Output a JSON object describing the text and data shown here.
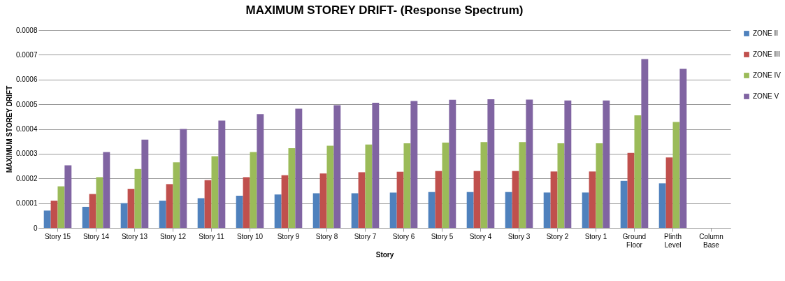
{
  "chart_data": {
    "type": "bar",
    "title": "MAXIMUM STOREY DRIFT- (Response Spectrum)",
    "xlabel": "Story",
    "ylabel": "MAXIMUM STOREY DRIFT",
    "categories": [
      "Story 15",
      "Story 14",
      "Story 13",
      "Story 12",
      "Story 11",
      "Story 10",
      "Story 9",
      "Story 8",
      "Story 7",
      "Story 6",
      "Story 5",
      "Story 4",
      "Story 3",
      "Story 2",
      "Story 1",
      "Ground Floor",
      "Plinth Level",
      "Column Base"
    ],
    "series": [
      {
        "name": "ZONE II",
        "color": "#4f81bd",
        "values": [
          7e-05,
          8.5e-05,
          0.0001,
          0.00011,
          0.00012,
          0.00013,
          0.000135,
          0.00014,
          0.00014,
          0.000143,
          0.000145,
          0.000145,
          0.000145,
          0.000143,
          0.000143,
          0.00019,
          0.00018,
          null
        ]
      },
      {
        "name": "ZONE III",
        "color": "#c0504d",
        "values": [
          0.00011,
          0.000137,
          0.000158,
          0.000177,
          0.000193,
          0.000205,
          0.000213,
          0.00022,
          0.000225,
          0.000227,
          0.00023,
          0.00023,
          0.00023,
          0.000228,
          0.000228,
          0.000303,
          0.000285,
          null
        ]
      },
      {
        "name": "ZONE IV",
        "color": "#9bbb59",
        "values": [
          0.000168,
          0.000205,
          0.000238,
          0.000265,
          0.00029,
          0.000307,
          0.000322,
          0.000332,
          0.000337,
          0.000342,
          0.000345,
          0.000347,
          0.000347,
          0.000342,
          0.000342,
          0.000455,
          0.000428,
          null
        ]
      },
      {
        "name": "ZONE V",
        "color": "#8064a2",
        "values": [
          0.000253,
          0.000307,
          0.000357,
          0.0004,
          0.000434,
          0.00046,
          0.000482,
          0.000496,
          0.000506,
          0.000513,
          0.000518,
          0.00052,
          0.000519,
          0.000515,
          0.000515,
          0.000683,
          0.000643,
          null
        ]
      }
    ],
    "ylim": [
      0,
      0.0008
    ],
    "yticks": [
      0,
      0.0001,
      0.0002,
      0.0003,
      0.0004,
      0.0005,
      0.0006,
      0.0007,
      0.0008
    ],
    "grid": "y",
    "legend": "right"
  }
}
